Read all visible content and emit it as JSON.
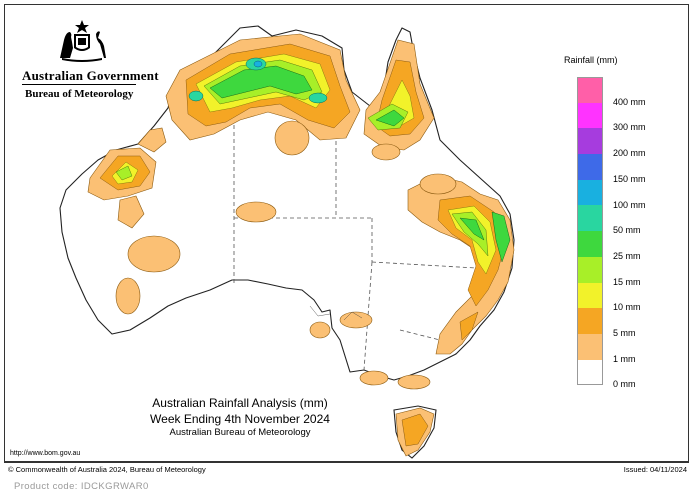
{
  "header": {
    "government": "Australian Government",
    "agency": "Bureau of Meteorology"
  },
  "legend": {
    "title": "Rainfall (mm)",
    "items": [
      {
        "label": "400 mm",
        "color": "#ff5fa8"
      },
      {
        "label": "300 mm",
        "color": "#ff33ff"
      },
      {
        "label": "200 mm",
        "color": "#a63cde"
      },
      {
        "label": "150 mm",
        "color": "#3e6ae8"
      },
      {
        "label": "100 mm",
        "color": "#19b0e0"
      },
      {
        "label": "50 mm",
        "color": "#29d6a0"
      },
      {
        "label": "25 mm",
        "color": "#3ed83e"
      },
      {
        "label": "15 mm",
        "color": "#a8ef28"
      },
      {
        "label": "10 mm",
        "color": "#f2f22a"
      },
      {
        "label": "5 mm",
        "color": "#f5a623"
      },
      {
        "label": "1 mm",
        "color": "#fbc074"
      },
      {
        "label": "0 mm",
        "color": "#ffffff"
      }
    ]
  },
  "title": {
    "line1": "Australian Rainfall Analysis (mm)",
    "line2": "Week Ending 4th November 2024",
    "line3": "Australian Bureau of Meteorology"
  },
  "url": "http://www.bom.gov.au",
  "footer": {
    "copyright": "© Commonwealth of Australia 2024, Bureau of Meteorology",
    "issued": "Issued: 04/11/2024"
  },
  "product_code": "Product code: IDCKGRWAR0"
}
